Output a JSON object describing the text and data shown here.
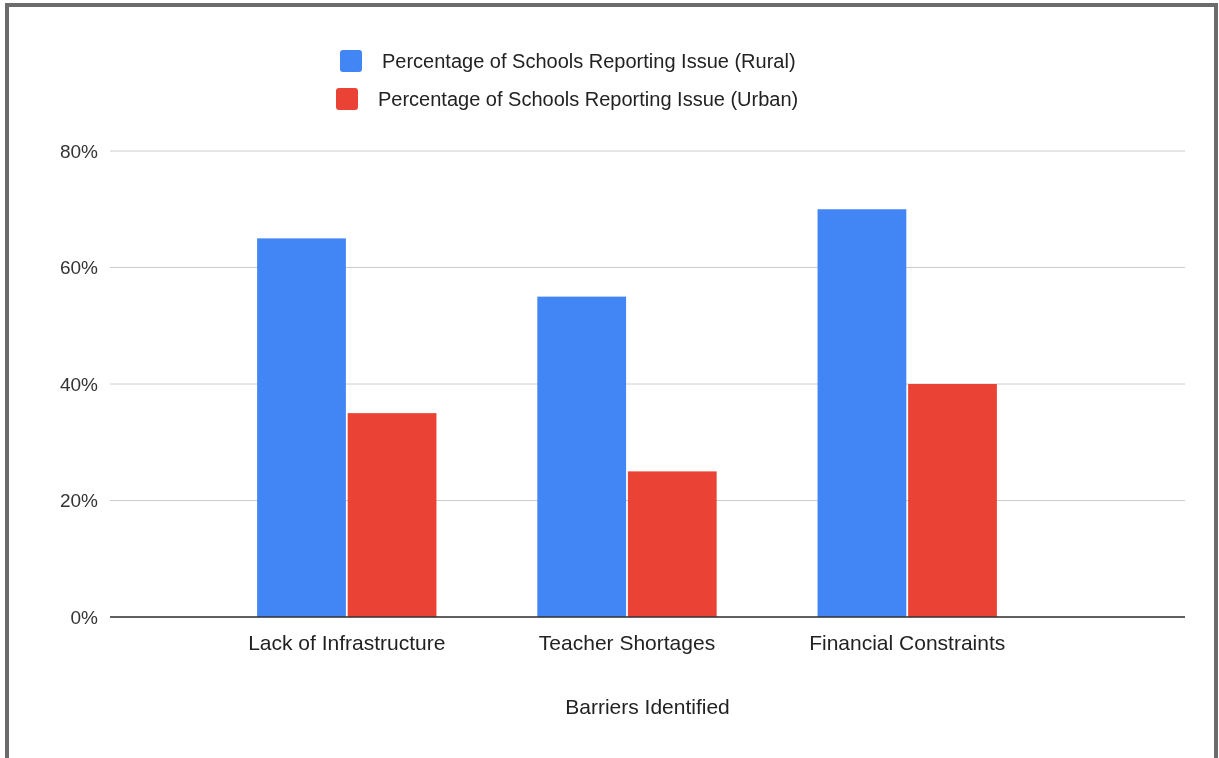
{
  "chart_data": {
    "type": "bar",
    "xlabel": "Barriers Identified",
    "categories": [
      "Lack of Infrastructure",
      "Teacher Shortages",
      "Financial Constraints"
    ],
    "series": [
      {
        "name": "Percentage of Schools Reporting Issue (Rural)",
        "color": "#4285f4",
        "values": [
          65,
          55,
          70
        ]
      },
      {
        "name": "Percentage of Schools Reporting Issue (Urban)",
        "color": "#ea4335",
        "values": [
          35,
          25,
          40
        ]
      }
    ],
    "ylim": [
      0,
      80
    ],
    "yticks": [
      {
        "value": 0,
        "label": "0%"
      },
      {
        "value": 20,
        "label": "20%"
      },
      {
        "value": 40,
        "label": "40%"
      },
      {
        "value": 60,
        "label": "60%"
      },
      {
        "value": 80,
        "label": "80%"
      }
    ],
    "grid": "y",
    "legend": "top"
  }
}
